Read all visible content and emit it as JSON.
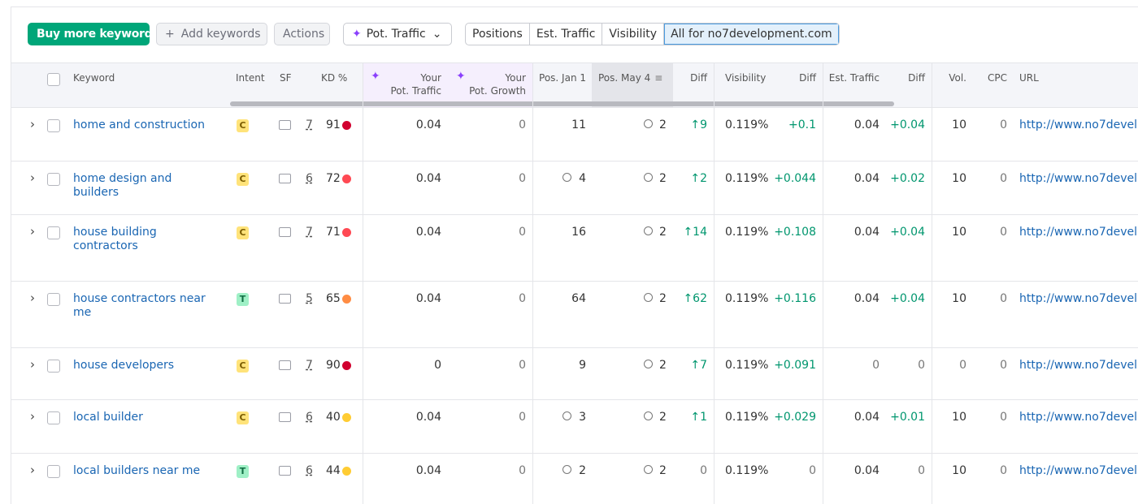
{
  "toolbar": {
    "buy": "Buy more keywords",
    "add": "Add keywords",
    "actions": "Actions",
    "pot_traffic": "Pot. Traffic",
    "tabs": [
      "Positions",
      "Est. Traffic",
      "Visibility",
      "All for no7development.com"
    ]
  },
  "table": {
    "headers": [
      "Keyword",
      "Intent",
      "SF",
      "KD %",
      [
        "Your",
        "Pot. Traffic"
      ],
      [
        "Your",
        "Pot. Growth"
      ],
      "Pos. Jan 1",
      "Pos. May 4",
      "Diff",
      "Visibility",
      "Diff",
      "Est. Traffic",
      "Diff",
      "Vol.",
      "CPC",
      "URL"
    ],
    "rows": [
      {
        "keyword": "home and construction",
        "intent": "C",
        "sf": "7",
        "kd": "91",
        "kd_color": "#d1002f",
        "pot_traffic": "0.04",
        "pot_growth": "0",
        "pos_jan": "11",
        "pos_jan_pin": false,
        "pos_may": "2",
        "diff": "9",
        "visibility": "0.119%",
        "vis_diff": "+0.1",
        "est_traffic": "0.04",
        "est_diff": "+0.04",
        "vol": "10",
        "cpc": "0",
        "url": "http://www.no7devel"
      },
      {
        "keyword": "home design and builders",
        "intent": "C",
        "sf": "6",
        "kd": "72",
        "kd_color": "#ff4953",
        "pot_traffic": "0.04",
        "pot_growth": "0",
        "pos_jan": "4",
        "pos_jan_pin": true,
        "pos_may": "2",
        "diff": "2",
        "visibility": "0.119%",
        "vis_diff": "+0.044",
        "est_traffic": "0.04",
        "est_diff": "+0.02",
        "vol": "10",
        "cpc": "0",
        "url": "http://www.no7devel"
      },
      {
        "keyword": "house building contractors",
        "intent": "C",
        "sf": "7",
        "kd": "71",
        "kd_color": "#ff4953",
        "pot_traffic": "0.04",
        "pot_growth": "0",
        "pos_jan": "16",
        "pos_jan_pin": false,
        "pos_may": "2",
        "diff": "14",
        "visibility": "0.119%",
        "vis_diff": "+0.108",
        "est_traffic": "0.04",
        "est_diff": "+0.04",
        "vol": "10",
        "cpc": "0",
        "url": "http://www.no7devel"
      },
      {
        "keyword": "house contractors near me",
        "intent": "T",
        "sf": "5",
        "kd": "65",
        "kd_color": "#ff8c43",
        "pot_traffic": "0.04",
        "pot_growth": "0",
        "pos_jan": "64",
        "pos_jan_pin": false,
        "pos_may": "2",
        "diff": "62",
        "visibility": "0.119%",
        "vis_diff": "+0.116",
        "est_traffic": "0.04",
        "est_diff": "+0.04",
        "vol": "10",
        "cpc": "0",
        "url": "http://www.no7devel"
      },
      {
        "keyword": "house developers",
        "intent": "C",
        "sf": "7",
        "kd": "90",
        "kd_color": "#d1002f",
        "pot_traffic": "0",
        "pot_growth": "0",
        "pos_jan": "9",
        "pos_jan_pin": false,
        "pos_may": "2",
        "diff": "7",
        "visibility": "0.119%",
        "vis_diff": "+0.091",
        "est_traffic": "0",
        "est_diff": "0",
        "vol": "0",
        "cpc": "0",
        "url": "http://www.no7devel"
      },
      {
        "keyword": "local builder",
        "intent": "C",
        "sf": "6",
        "kd": "40",
        "kd_color": "#ffcc33",
        "pot_traffic": "0.04",
        "pot_growth": "0",
        "pos_jan": "3",
        "pos_jan_pin": true,
        "pos_may": "2",
        "diff": "1",
        "visibility": "0.119%",
        "vis_diff": "+0.029",
        "est_traffic": "0.04",
        "est_diff": "+0.01",
        "vol": "10",
        "cpc": "0",
        "url": "http://www.no7devel"
      },
      {
        "keyword": "local builders near me",
        "intent": "T",
        "sf": "6",
        "kd": "44",
        "kd_color": "#ffcc33",
        "pot_traffic": "0.04",
        "pot_growth": "0",
        "pos_jan": "2",
        "pos_jan_pin": true,
        "pos_may": "2",
        "diff": "0",
        "visibility": "0.119%",
        "vis_diff": "0",
        "est_traffic": "0.04",
        "est_diff": "0",
        "vol": "10",
        "cpc": "0",
        "url": "http://www.no7devel"
      }
    ]
  }
}
